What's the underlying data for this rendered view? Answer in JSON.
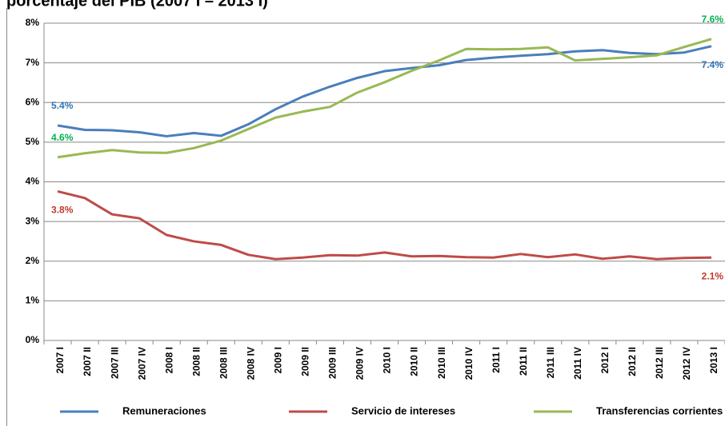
{
  "chart_data": {
    "type": "line",
    "title": "porcentaje del PIB (2007 I – 2013 I)",
    "categories": [
      "2007 I",
      "2007 II",
      "2007 III",
      "2007 IV",
      "2008 I",
      "2008 II",
      "2008 III",
      "2008 IV",
      "2009 I",
      "2009 II",
      "2009 III",
      "2009 IV",
      "2010 I",
      "2010 II",
      "2010 III",
      "2010 IV",
      "2011 I",
      "2011 II",
      "2011 III",
      "2011 IV",
      "2012 I",
      "2012 II",
      "2012 III",
      "2012 IV",
      "2013 I"
    ],
    "series": [
      {
        "name": "Remuneraciones",
        "color": "#4a7ebb",
        "label_color": "#2e75b6",
        "values": [
          5.42,
          5.31,
          5.3,
          5.25,
          5.15,
          5.23,
          5.16,
          5.45,
          5.83,
          6.15,
          6.4,
          6.62,
          6.79,
          6.87,
          6.94,
          7.07,
          7.13,
          7.18,
          7.22,
          7.29,
          7.32,
          7.25,
          7.22,
          7.26,
          7.42
        ],
        "value_labels": [
          "5.4%",
          null,
          null,
          null,
          null,
          null,
          null,
          null,
          null,
          null,
          null,
          null,
          null,
          null,
          null,
          null,
          null,
          null,
          null,
          null,
          null,
          null,
          null,
          null,
          "7.4%"
        ]
      },
      {
        "name": "Servicio de intereses",
        "color": "#be4b48",
        "label_color": "#c0392b",
        "values": [
          3.76,
          3.59,
          3.18,
          3.08,
          2.66,
          2.5,
          2.41,
          2.16,
          2.05,
          2.09,
          2.15,
          2.14,
          2.22,
          2.12,
          2.13,
          2.1,
          2.09,
          2.18,
          2.1,
          2.17,
          2.06,
          2.12,
          2.05,
          2.08,
          2.09
        ],
        "value_labels": [
          "3.8%",
          null,
          null,
          null,
          null,
          null,
          null,
          null,
          null,
          null,
          null,
          null,
          null,
          null,
          null,
          null,
          null,
          null,
          null,
          null,
          null,
          null,
          null,
          null,
          "2.1%"
        ]
      },
      {
        "name": "Transferencias corrientes",
        "color": "#98b954",
        "label_color": "#00b050",
        "values": [
          4.62,
          4.72,
          4.8,
          4.74,
          4.73,
          4.85,
          5.04,
          5.33,
          5.62,
          5.77,
          5.89,
          6.25,
          6.51,
          6.8,
          7.06,
          7.35,
          7.34,
          7.35,
          7.39,
          7.06,
          7.1,
          7.14,
          7.19,
          7.4,
          7.6
        ],
        "value_labels": [
          "4.6%",
          null,
          null,
          null,
          null,
          null,
          null,
          null,
          null,
          null,
          null,
          null,
          null,
          null,
          null,
          null,
          null,
          null,
          null,
          null,
          null,
          null,
          null,
          null,
          "7.6%"
        ]
      }
    ],
    "ylim": [
      0,
      8
    ],
    "yticks": [
      {
        "value": 0,
        "label": "0%"
      },
      {
        "value": 1,
        "label": "1%"
      },
      {
        "value": 2,
        "label": "2%"
      },
      {
        "value": 3,
        "label": "3%"
      },
      {
        "value": 4,
        "label": "4%"
      },
      {
        "value": 5,
        "label": "5%"
      },
      {
        "value": 6,
        "label": "6%"
      },
      {
        "value": 7,
        "label": "7%"
      },
      {
        "value": 8,
        "label": "8%"
      }
    ],
    "grid": true,
    "legend": "bottom"
  }
}
